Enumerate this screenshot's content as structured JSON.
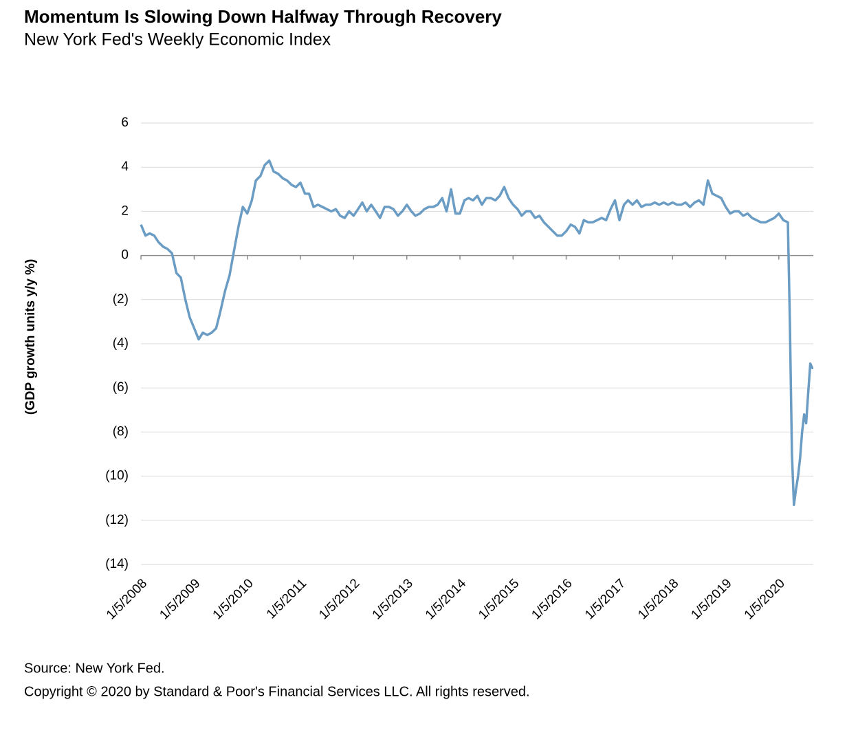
{
  "chart_data": {
    "type": "line",
    "title": "Momentum Is Slowing Down Halfway Through Recovery",
    "subtitle": "New York Fed's Weekly Economic Index",
    "y_label": "(GDP growth units y/y %)",
    "source": "Source: New York Fed.",
    "copyright": "Copyright © 2020 by Standard & Poor's Financial Services LLC. All rights reserved.",
    "x": [
      "1/5/2008",
      "2/5/2008",
      "3/5/2008",
      "4/5/2008",
      "5/5/2008",
      "6/5/2008",
      "7/5/2008",
      "8/5/2008",
      "9/5/2008",
      "10/5/2008",
      "11/5/2008",
      "12/5/2008",
      "1/5/2009",
      "2/5/2009",
      "3/5/2009",
      "4/5/2009",
      "5/5/2009",
      "6/5/2009",
      "7/5/2009",
      "8/5/2009",
      "9/5/2009",
      "10/5/2009",
      "11/5/2009",
      "12/5/2009",
      "1/5/2010",
      "2/5/2010",
      "3/5/2010",
      "4/5/2010",
      "5/5/2010",
      "6/5/2010",
      "7/5/2010",
      "8/5/2010",
      "9/5/2010",
      "10/5/2010",
      "11/5/2010",
      "12/5/2010",
      "1/5/2011",
      "2/5/2011",
      "3/5/2011",
      "4/5/2011",
      "5/5/2011",
      "6/5/2011",
      "7/5/2011",
      "8/5/2011",
      "9/5/2011",
      "10/5/2011",
      "11/5/2011",
      "12/5/2011",
      "1/5/2012",
      "2/5/2012",
      "3/5/2012",
      "4/5/2012",
      "5/5/2012",
      "6/5/2012",
      "7/5/2012",
      "8/5/2012",
      "9/5/2012",
      "10/5/2012",
      "11/5/2012",
      "12/5/2012",
      "1/5/2013",
      "2/5/2013",
      "3/5/2013",
      "4/5/2013",
      "5/5/2013",
      "6/5/2013",
      "7/5/2013",
      "8/5/2013",
      "9/5/2013",
      "10/5/2013",
      "11/5/2013",
      "12/5/2013",
      "1/5/2014",
      "2/5/2014",
      "3/5/2014",
      "4/5/2014",
      "5/5/2014",
      "6/5/2014",
      "7/5/2014",
      "8/5/2014",
      "9/5/2014",
      "10/5/2014",
      "11/5/2014",
      "12/5/2014",
      "1/5/2015",
      "2/5/2015",
      "3/5/2015",
      "4/5/2015",
      "5/5/2015",
      "6/5/2015",
      "7/5/2015",
      "8/5/2015",
      "9/5/2015",
      "10/5/2015",
      "11/5/2015",
      "12/5/2015",
      "1/5/2016",
      "2/5/2016",
      "3/5/2016",
      "4/5/2016",
      "5/5/2016",
      "6/5/2016",
      "7/5/2016",
      "8/5/2016",
      "9/5/2016",
      "10/5/2016",
      "11/5/2016",
      "12/5/2016",
      "1/5/2017",
      "2/5/2017",
      "3/5/2017",
      "4/5/2017",
      "5/5/2017",
      "6/5/2017",
      "7/5/2017",
      "8/5/2017",
      "9/5/2017",
      "10/5/2017",
      "11/5/2017",
      "12/5/2017",
      "1/5/2018",
      "2/5/2018",
      "3/5/2018",
      "4/5/2018",
      "5/5/2018",
      "6/5/2018",
      "7/5/2018",
      "8/5/2018",
      "9/5/2018",
      "10/5/2018",
      "11/5/2018",
      "12/5/2018",
      "1/5/2019",
      "2/5/2019",
      "3/5/2019",
      "4/5/2019",
      "5/5/2019",
      "6/5/2019",
      "7/5/2019",
      "8/5/2019",
      "9/5/2019",
      "10/5/2019",
      "11/5/2019",
      "12/5/2019",
      "1/5/2020",
      "2/5/2020",
      "3/7/2020",
      "3/21/2020",
      "4/4/2020",
      "4/18/2020",
      "5/2/2020",
      "5/16/2020",
      "5/30/2020",
      "6/13/2020",
      "6/27/2020",
      "7/11/2020",
      "7/25/2020",
      "8/8/2020",
      "8/22/2020",
      "8/29/2020"
    ],
    "series": [
      {
        "name": "Weekly Economic Index",
        "color": "#6a9cc4",
        "values": [
          1.4,
          0.9,
          1.0,
          0.9,
          0.6,
          0.4,
          0.3,
          0.1,
          -0.8,
          -1.0,
          -2.0,
          -2.8,
          -3.3,
          -3.8,
          -3.5,
          -3.6,
          -3.5,
          -3.3,
          -2.5,
          -1.6,
          -0.9,
          0.2,
          1.3,
          2.2,
          1.9,
          2.5,
          3.4,
          3.6,
          4.1,
          4.3,
          3.8,
          3.7,
          3.5,
          3.4,
          3.2,
          3.1,
          3.3,
          2.8,
          2.8,
          2.2,
          2.3,
          2.2,
          2.1,
          2.0,
          2.1,
          1.8,
          1.7,
          2.0,
          1.8,
          2.1,
          2.4,
          2.0,
          2.3,
          2.0,
          1.7,
          2.2,
          2.2,
          2.1,
          1.8,
          2.0,
          2.3,
          2.0,
          1.8,
          1.9,
          2.1,
          2.2,
          2.2,
          2.3,
          2.6,
          2.0,
          3.0,
          1.9,
          1.9,
          2.5,
          2.6,
          2.5,
          2.7,
          2.3,
          2.6,
          2.6,
          2.5,
          2.7,
          3.1,
          2.6,
          2.3,
          2.1,
          1.8,
          2.0,
          2.0,
          1.7,
          1.8,
          1.5,
          1.3,
          1.1,
          0.9,
          0.9,
          1.1,
          1.4,
          1.3,
          1.0,
          1.6,
          1.5,
          1.5,
          1.6,
          1.7,
          1.6,
          2.1,
          2.5,
          1.6,
          2.3,
          2.5,
          2.3,
          2.5,
          2.2,
          2.3,
          2.3,
          2.4,
          2.3,
          2.4,
          2.3,
          2.4,
          2.3,
          2.3,
          2.4,
          2.2,
          2.4,
          2.5,
          2.3,
          3.4,
          2.8,
          2.7,
          2.6,
          2.2,
          1.9,
          2.0,
          2.0,
          1.8,
          1.9,
          1.7,
          1.6,
          1.5,
          1.5,
          1.6,
          1.7,
          1.9,
          1.6,
          1.5,
          -3,
          -9,
          -11.3,
          -10.6,
          -10.0,
          -9.2,
          -8.0,
          -7.2,
          -7.6,
          -6.2,
          -4.9,
          -5.1,
          -5.1
        ]
      }
    ],
    "xlim": [
      "1/5/2008",
      "8/29/2020"
    ],
    "xticks": [
      "1/5/2008",
      "1/5/2009",
      "1/5/2010",
      "1/5/2011",
      "1/5/2012",
      "1/5/2013",
      "1/5/2014",
      "1/5/2015",
      "1/5/2016",
      "1/5/2017",
      "1/5/2018",
      "1/5/2019",
      "1/5/2020"
    ],
    "ylim": [
      -14,
      6
    ],
    "yticks": [
      6,
      4,
      2,
      0,
      {
        "value": -2,
        "label": "(2)"
      },
      {
        "value": -4,
        "label": "(4)"
      },
      {
        "value": -6,
        "label": "(6)"
      },
      {
        "value": -8,
        "label": "(8)"
      },
      {
        "value": -10,
        "label": "(10)"
      },
      {
        "value": -12,
        "label": "(12)"
      },
      {
        "value": -14,
        "label": "(14)"
      }
    ],
    "grid": true
  }
}
